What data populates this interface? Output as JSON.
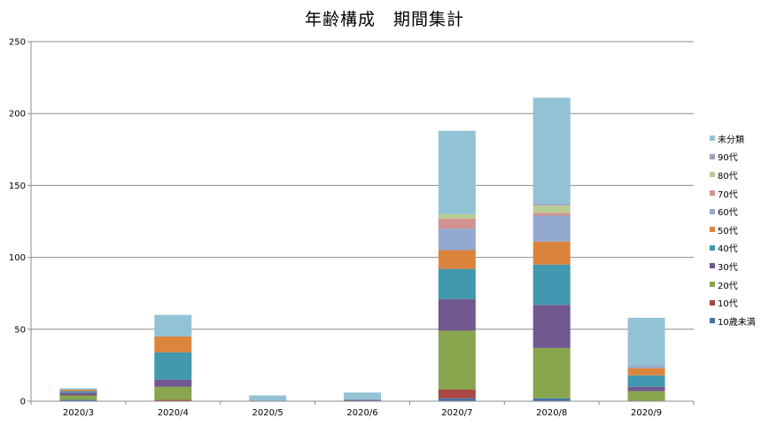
{
  "chart_data": {
    "type": "bar",
    "stacked": true,
    "title": "年齢構成　期間集計",
    "xlabel": "",
    "ylabel": "",
    "ylim": [
      0,
      250
    ],
    "yticks": [
      0,
      50,
      100,
      150,
      200,
      250
    ],
    "grid": true,
    "legend_position": "right",
    "categories": [
      "2020/3",
      "2020/4",
      "2020/5",
      "2020/6",
      "2020/7",
      "2020/8",
      "2020/9"
    ],
    "series": [
      {
        "name": "10歳未満",
        "color": "#4572A7",
        "values": [
          1,
          0,
          0,
          0,
          2,
          2,
          0
        ]
      },
      {
        "name": "10代",
        "color": "#AA4643",
        "values": [
          0,
          1,
          0,
          0,
          6,
          0,
          0
        ]
      },
      {
        "name": "20代",
        "color": "#89A54E",
        "values": [
          3,
          9,
          0,
          0,
          41,
          35,
          7
        ]
      },
      {
        "name": "30代",
        "color": "#71588F",
        "values": [
          2,
          5,
          0,
          1,
          22,
          30,
          3
        ]
      },
      {
        "name": "40代",
        "color": "#4198AF",
        "values": [
          1,
          19,
          0,
          0,
          21,
          28,
          8
        ]
      },
      {
        "name": "50代",
        "color": "#DB843D",
        "values": [
          1,
          11,
          0,
          0,
          13,
          16,
          5
        ]
      },
      {
        "name": "60代",
        "color": "#93A9CF",
        "values": [
          0,
          0,
          0,
          0,
          15,
          18,
          2
        ]
      },
      {
        "name": "70代",
        "color": "#D19392",
        "values": [
          0,
          0,
          0,
          0,
          7,
          2,
          0
        ]
      },
      {
        "name": "80代",
        "color": "#B9CD96",
        "values": [
          0,
          0,
          0,
          0,
          3,
          5,
          0
        ]
      },
      {
        "name": "90代",
        "color": "#A99BBD",
        "values": [
          0,
          0,
          0,
          0,
          0,
          1,
          0
        ]
      },
      {
        "name": "未分類",
        "color": "#92C3D4",
        "values": [
          1,
          15,
          4,
          5,
          58,
          74,
          33
        ]
      }
    ]
  }
}
